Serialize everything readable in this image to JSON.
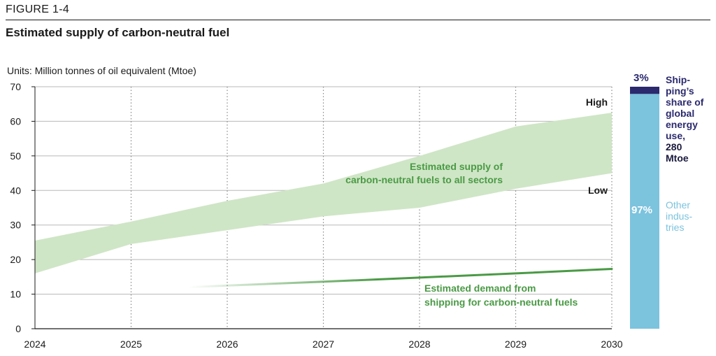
{
  "figure_label": "FIGURE 1-4",
  "title": "Estimated supply of carbon-neutral fuel",
  "units_prefix": "Units:",
  "units_text": "Million tonnes of oil equivalent (Mtoe)",
  "colors": {
    "band": "#cfe6c6",
    "demand_line": "#4a9a45",
    "label_green": "#4a9a45",
    "grid": "#b8b8b8",
    "shipping": "#2b2a6e",
    "other": "#7cc3de"
  },
  "chart_data": {
    "type": "area",
    "x": [
      2024,
      2025,
      2026,
      2027,
      2028,
      2029,
      2030
    ],
    "ylim": [
      0,
      70
    ],
    "yticks": [
      0,
      10,
      20,
      30,
      40,
      50,
      60,
      70
    ],
    "grid": true,
    "series": [
      {
        "name": "High",
        "values": [
          25.5,
          31,
          37,
          42,
          50,
          58.5,
          62.5
        ]
      },
      {
        "name": "Low",
        "values": [
          16,
          24.5,
          28.5,
          32.5,
          35,
          40.5,
          45
        ]
      },
      {
        "name": "",
        "x": [
          2025.6,
          2026,
          2027,
          2028,
          2029,
          2030
        ],
        "values": [
          12,
          12.5,
          13.6,
          14.8,
          16,
          17.3
        ]
      }
    ],
    "annotations": {
      "high": "High",
      "low": "Low",
      "supply_line1": "Estimated supply of",
      "supply_line2": "carbon-neutral fuels to all sectors",
      "demand_line1": "Estimated demand from",
      "demand_line2": "shipping for carbon-neutral fuels"
    }
  },
  "share_bar": {
    "total_mtoe": 280,
    "shipping_pct": 3,
    "other_pct": 97,
    "shipping_pct_label": "3%",
    "other_pct_label": "97%",
    "shipping_label_lines": [
      "Ship-",
      "ping’s",
      "share of",
      "global",
      "energy",
      "use,"
    ],
    "shipping_bold_lines": [
      "280",
      "Mtoe"
    ],
    "other_label_lines": [
      "Other",
      "indus-",
      "tries"
    ]
  }
}
